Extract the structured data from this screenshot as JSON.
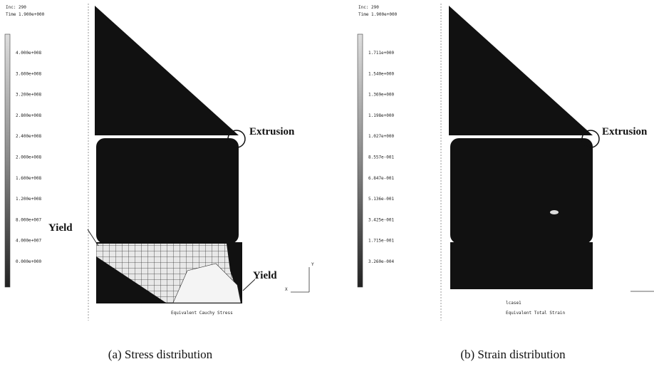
{
  "panels": [
    {
      "increment": "Inc: 290",
      "time": "Time 1.900e+000",
      "legend": [
        "4.000e+008",
        "3.600e+008",
        "3.200e+008",
        "2.800e+008",
        "2.400e+008",
        "2.000e+008",
        "1.600e+008",
        "1.200e+008",
        "8.000e+007",
        "4.000e+007",
        "0.000e+000"
      ],
      "quantity": "Equivalent Cauchy Stress",
      "annotations": [
        "Extrusion",
        "Yield",
        "Yield"
      ],
      "axis_labels": [
        "Y",
        "X"
      ],
      "caption": "(a) Stress distribution"
    },
    {
      "increment": "Inc: 290",
      "time": "Time 1.900e+000",
      "legend": [
        "1.711e+000",
        "1.540e+000",
        "1.369e+000",
        "1.198e+000",
        "1.027e+000",
        "8.557e-001",
        "6.847e-001",
        "5.136e-001",
        "3.425e-001",
        "1.715e-001",
        "3.260e-004"
      ],
      "loadcase": "lcase1",
      "quantity": "Equivalent Total Strain",
      "annotations": [
        "Extrusion"
      ],
      "caption": "(b) Strain distribution"
    }
  ]
}
